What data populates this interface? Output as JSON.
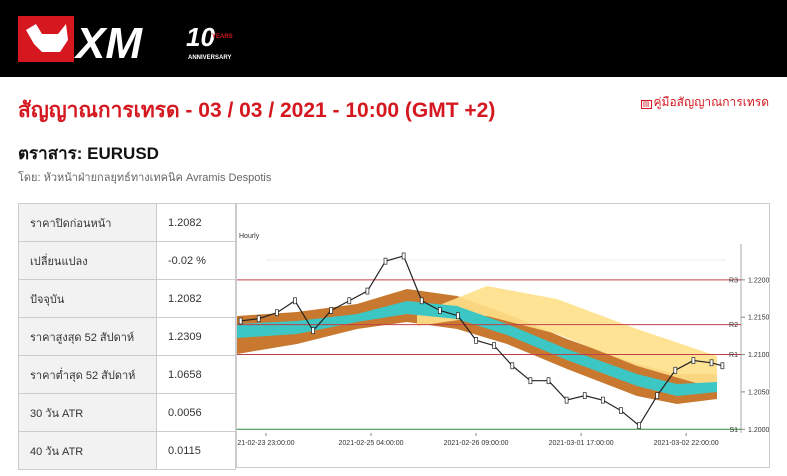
{
  "header": {
    "logo_text": "XM",
    "logo_number": "10",
    "logo_years": "YEARS",
    "logo_anniversary": "ANNIVERSARY"
  },
  "title": "สัญญาณการเทรด - 03 / 03 / 2021 - 10:00 (GMT +2)",
  "guide_link": "คู่มือสัญญาณการเทรด",
  "instrument": "ตราสาร: EURUSD",
  "author": "โดย: หัวหน้าฝ่ายกลยุทธ์ทางเทคนิค Avramis Despotis",
  "table": {
    "rows": [
      [
        "ราคาปิดก่อนหน้า",
        "1.2082"
      ],
      [
        "เปลี่ยนแปลง",
        "-0.02 %"
      ],
      [
        "ปัจจุบัน",
        "1.2082"
      ],
      [
        "ราคาสูงสุด 52 สัปดาห์",
        "1.2309"
      ],
      [
        "ราคาต่ำสุด 52 สัปดาห์",
        "1.0658"
      ],
      [
        "30 วัน ATR",
        "0.0056"
      ],
      [
        "40 วัน ATR",
        "0.0115"
      ]
    ]
  },
  "chart_data": {
    "type": "line",
    "subtitle": "Hourly",
    "x": [
      -7,
      -2,
      3,
      8,
      13,
      18,
      23,
      28,
      33,
      38,
      43,
      48,
      53,
      58,
      63,
      68,
      73,
      78,
      83,
      88,
      93,
      98,
      103,
      108,
      113,
      118,
      123,
      126
    ],
    "series": [
      {
        "name": "EURUSD",
        "color": "#222222",
        "values": [
          1.2145,
          1.2148,
          1.2156,
          1.2172,
          1.2132,
          1.2159,
          1.2172,
          1.2185,
          1.2225,
          1.2232,
          1.2172,
          1.2159,
          1.2152,
          1.2119,
          1.2112,
          1.2085,
          1.2065,
          1.2065,
          1.2039,
          1.2045,
          1.2039,
          1.2025,
          1.2005,
          1.2045,
          1.2079,
          1.2092,
          1.2089,
          1.2085
        ]
      }
    ],
    "levels": [
      {
        "name": "R3",
        "value": 1.22,
        "color": "#c0404a"
      },
      {
        "name": "R2",
        "value": 1.214,
        "color": "#c0404a"
      },
      {
        "name": "R1",
        "value": 1.21,
        "color": "#c0404a"
      },
      {
        "name": "S1",
        "value": 1.2,
        "color": "#2e8b3a"
      }
    ],
    "xlim": [
      -8,
      127
    ],
    "xticks": [
      {
        "value": 0,
        "label": "21-02-23 23:00:00"
      },
      {
        "value": 29,
        "label": "2021-02-25 04:00:00"
      },
      {
        "value": 58,
        "label": "2021-02-26 09:00:00"
      },
      {
        "value": 87,
        "label": "2021-03-01 17:00:00"
      },
      {
        "value": 116,
        "label": "2021-03-02 22:00:00"
      }
    ],
    "ylim": [
      1.1995,
      1.2248
    ],
    "yticks": [
      {
        "value": 1.22,
        "label": "1.2200"
      },
      {
        "value": 1.215,
        "label": "1.2150"
      },
      {
        "value": 1.21,
        "label": "1.2100"
      },
      {
        "value": 1.205,
        "label": "1.2050"
      },
      {
        "value": 1.2,
        "label": "1.2000"
      }
    ]
  }
}
